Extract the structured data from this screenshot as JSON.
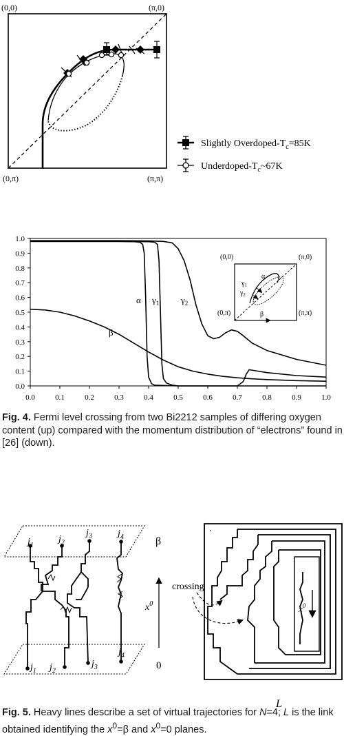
{
  "figure_top": {
    "corners": {
      "top_left": "(0,0)",
      "top_right": "(π,0)",
      "bottom_left": "(0,π)",
      "bottom_right": "(π,π)"
    },
    "legend": [
      {
        "label_pre": "Slightly  Overdoped-T",
        "label_sub": "c",
        "label_post": "=85K",
        "marker": "filled-square"
      },
      {
        "label_pre": "Underdoped-T",
        "label_sub": "c",
        "label_post": "~67K",
        "marker": "open-circle"
      }
    ]
  },
  "chart_data": {
    "type": "line",
    "xlim": [
      0.0,
      1.0
    ],
    "ylim": [
      0.0,
      1.0
    ],
    "x_ticks": [
      "0.0",
      "0.1",
      "0.2",
      "0.3",
      "0.4",
      "0.5",
      "0.6",
      "0.7",
      "0.8",
      "0.9",
      "1.0"
    ],
    "y_ticks": [
      "0.0",
      "0.1",
      "0.2",
      "0.3",
      "0.4",
      "0.5",
      "0.6",
      "0.7",
      "0.8",
      "0.9",
      "1.0"
    ],
    "curve_labels": [
      "α",
      "γ",
      "1",
      "γ",
      "2",
      "β"
    ],
    "series": [
      {
        "name": "α",
        "x": [
          0,
          0.1,
          0.2,
          0.3,
          0.35,
          0.37,
          0.38,
          0.385,
          0.39,
          0.395,
          0.4,
          0.41,
          0.42,
          0.5,
          0.6,
          0.7,
          0.8,
          0.9,
          1.0
        ],
        "y": [
          0.98,
          0.98,
          0.98,
          0.98,
          0.978,
          0.975,
          0.96,
          0.9,
          0.6,
          0.2,
          0.06,
          0.015,
          0.005,
          0.0,
          0.0,
          0.0,
          0.0,
          0.0,
          0.0
        ]
      },
      {
        "name": "γ1",
        "x": [
          0,
          0.1,
          0.2,
          0.3,
          0.4,
          0.42,
          0.43,
          0.435,
          0.44,
          0.445,
          0.45,
          0.46,
          0.48,
          0.5,
          0.6,
          0.7,
          0.72,
          0.73,
          0.74,
          0.8,
          0.9,
          1.0
        ],
        "y": [
          0.98,
          0.98,
          0.98,
          0.98,
          0.978,
          0.975,
          0.96,
          0.85,
          0.5,
          0.15,
          0.05,
          0.02,
          0.005,
          0.0,
          0.0,
          0.0,
          0.03,
          0.08,
          0.11,
          0.09,
          0.07,
          0.06
        ]
      },
      {
        "name": "γ2",
        "x": [
          0,
          0.1,
          0.2,
          0.3,
          0.4,
          0.45,
          0.48,
          0.5,
          0.52,
          0.54,
          0.56,
          0.58,
          0.6,
          0.62,
          0.64,
          0.66,
          0.68,
          0.7,
          0.72,
          0.75,
          0.8,
          0.9,
          1.0
        ],
        "y": [
          0.985,
          0.985,
          0.985,
          0.985,
          0.983,
          0.98,
          0.97,
          0.93,
          0.85,
          0.72,
          0.55,
          0.42,
          0.34,
          0.32,
          0.33,
          0.36,
          0.38,
          0.37,
          0.34,
          0.29,
          0.24,
          0.18,
          0.14
        ]
      },
      {
        "name": "β",
        "x": [
          0,
          0.05,
          0.1,
          0.15,
          0.2,
          0.25,
          0.3,
          0.35,
          0.4,
          0.45,
          0.5,
          0.55,
          0.6,
          0.65,
          0.7,
          0.75,
          0.8,
          0.9,
          1.0
        ],
        "y": [
          0.52,
          0.515,
          0.5,
          0.475,
          0.44,
          0.4,
          0.35,
          0.29,
          0.23,
          0.175,
          0.13,
          0.1,
          0.08,
          0.065,
          0.055,
          0.048,
          0.043,
          0.036,
          0.032
        ]
      }
    ],
    "inset": {
      "corners": {
        "top_left": "(0,0)",
        "top_right": "(π,0)",
        "bottom_left": "(0,π)",
        "bottom_right": "(π,π)"
      },
      "labels": [
        "α",
        "γ",
        "1",
        "γ",
        "2",
        "β"
      ]
    }
  },
  "fig4_caption": {
    "bold": "Fig. 4.",
    "text": " Fermi level crossing from two Bi2212 samples of differing oxygen content (up) compared with the momentum distribution of “electrons” found in [26] (down)."
  },
  "figure5": {
    "top_labels": [
      [
        "j",
        "1"
      ],
      [
        "j",
        "2"
      ],
      [
        "j",
        "3"
      ],
      [
        "j",
        "4"
      ]
    ],
    "bottom_labels": [
      [
        "j",
        "1"
      ],
      [
        "j",
        "2"
      ],
      [
        "j",
        "3"
      ],
      [
        "j",
        "4"
      ]
    ],
    "beta": "β",
    "zero": "0",
    "x0": [
      "x",
      "0"
    ],
    "crossing": "crossing",
    "L": "L"
  },
  "fig5_caption": {
    "bold": "Fig. 5.",
    "p1": " Heavy lines describe a set of virtual trajectories for ",
    "N": "N",
    "p2": "=4; ",
    "L": "L",
    "p3": " is the link obtained identifying the ",
    "x": "x",
    "sup": "0",
    "p4": "=β and ",
    "p5": "=0 planes."
  }
}
